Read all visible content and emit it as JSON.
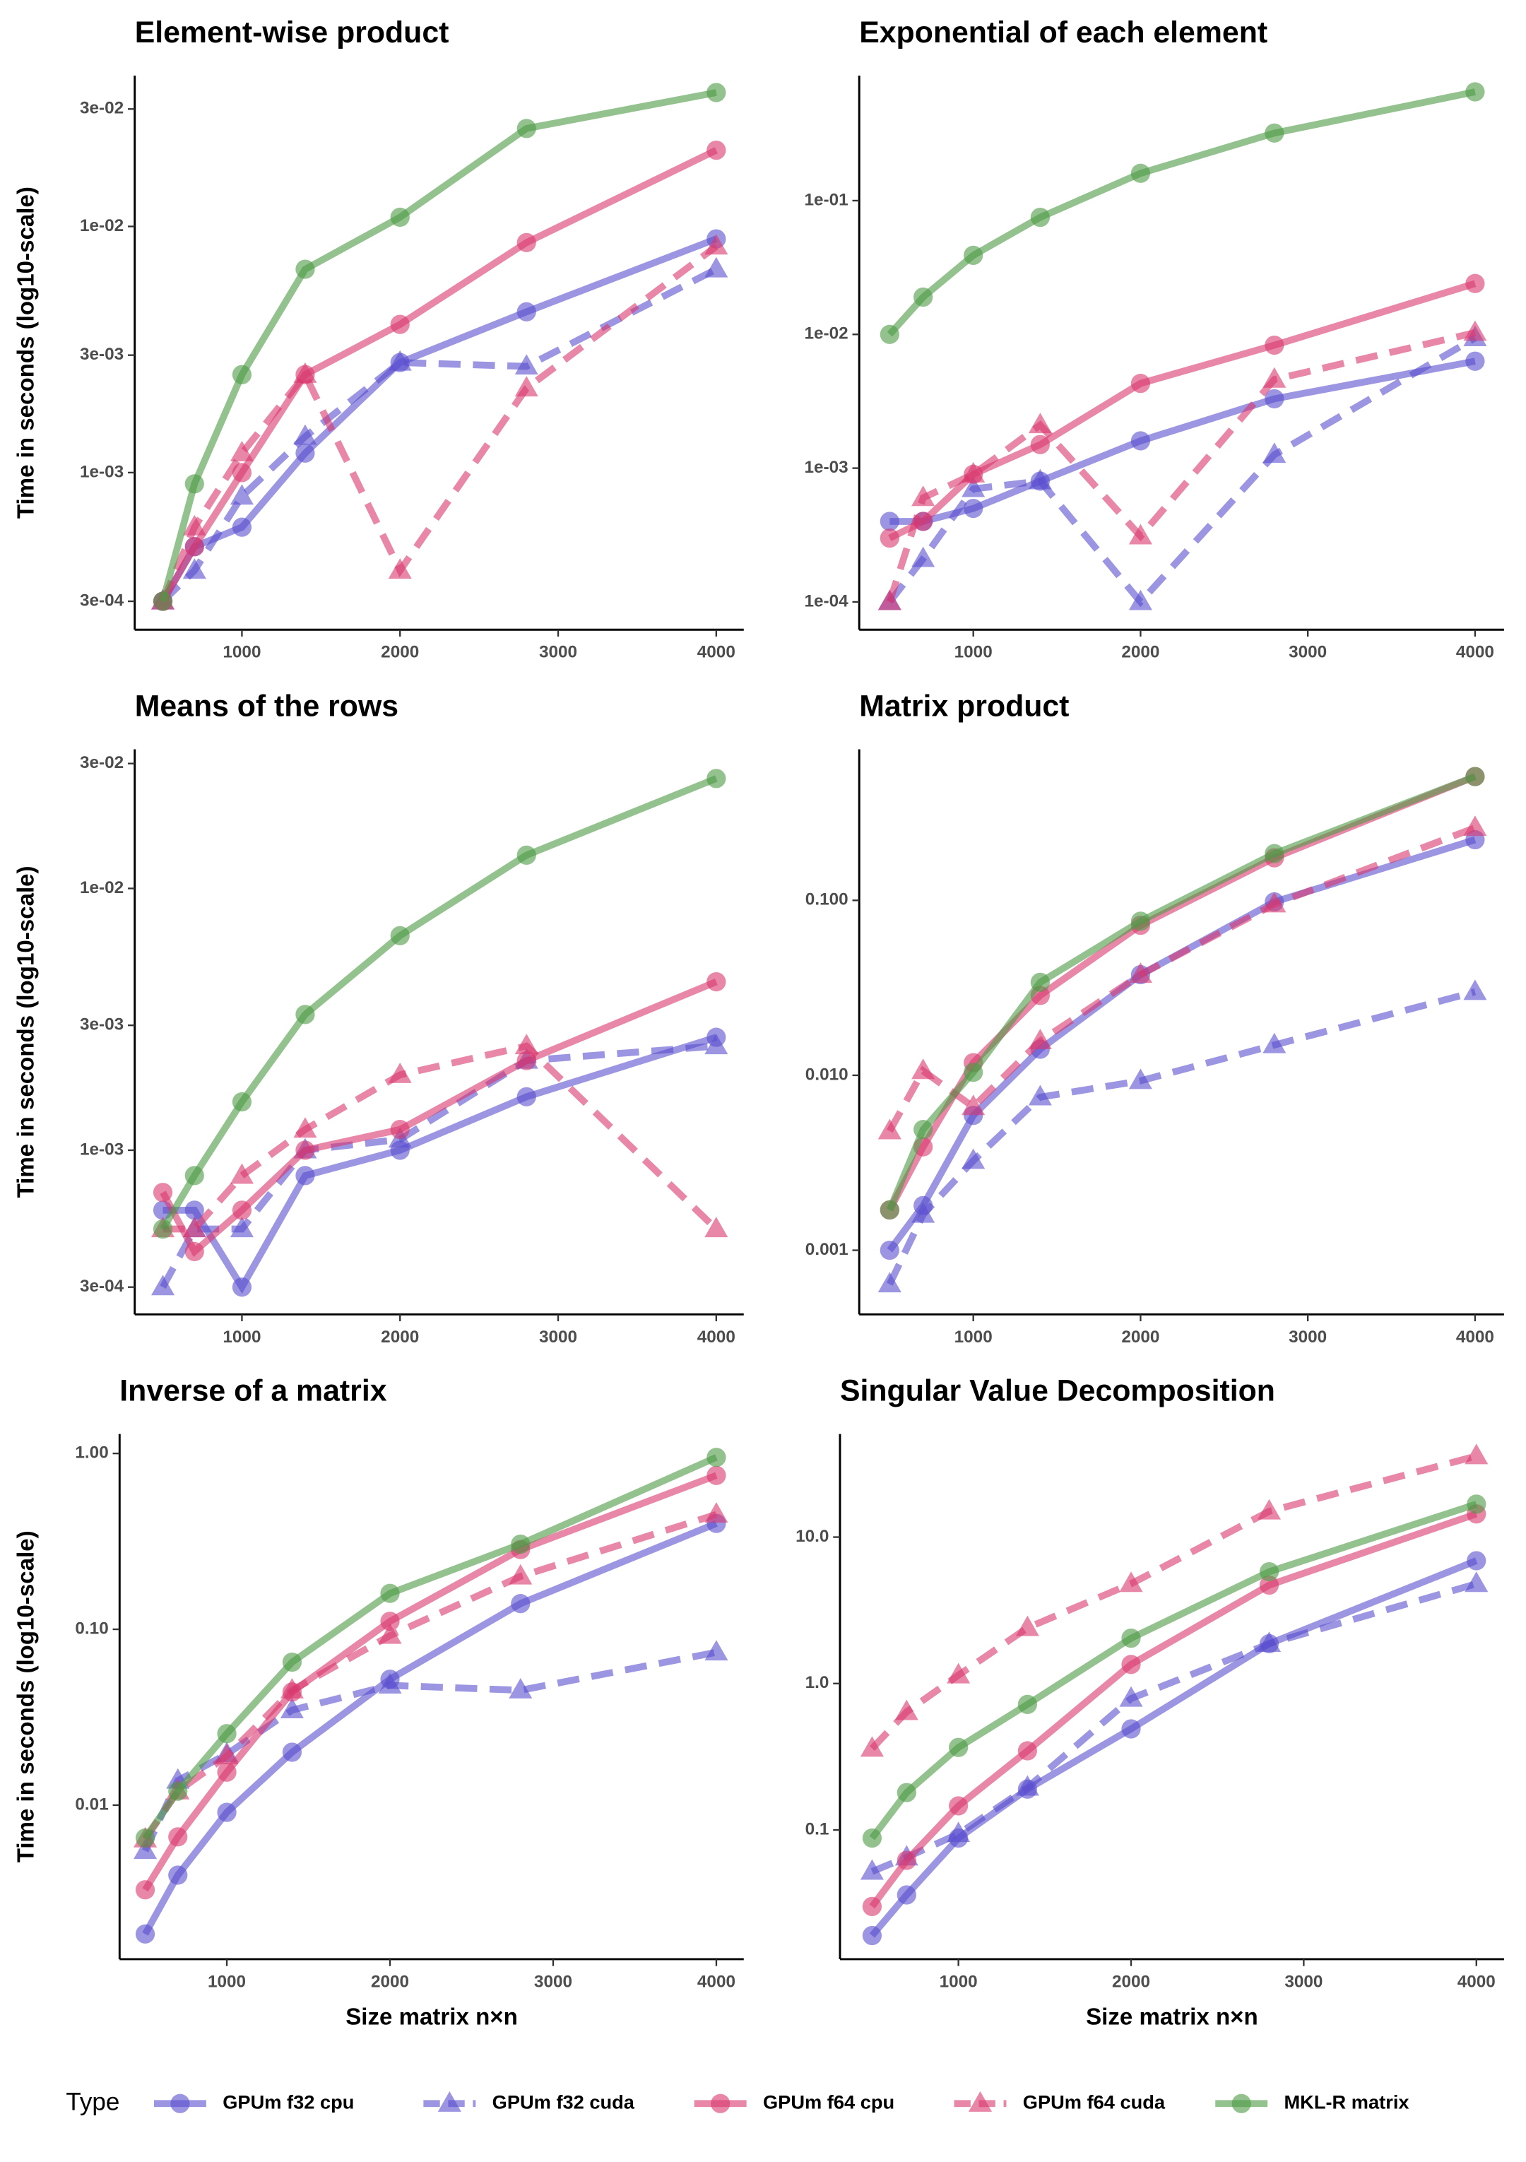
{
  "chart_data": [
    {
      "type": "line",
      "title": "Element-wise product",
      "ylabel": "Time in seconds (log10-scale)",
      "ylog": true,
      "x": [
        500,
        700,
        1000,
        1400,
        2000,
        2800,
        4000
      ],
      "xlim": [
        322,
        4174
      ],
      "xticks": [
        1000,
        2000,
        3000,
        4000
      ],
      "ylim": [
        0.00023,
        0.041
      ],
      "yticks": [
        {
          "value": 0.0003,
          "label": "3e-04"
        },
        {
          "value": 0.001,
          "label": "1e-03"
        },
        {
          "value": 0.003,
          "label": "3e-03"
        },
        {
          "value": 0.01,
          "label": "1e-02"
        },
        {
          "value": 0.03,
          "label": "3e-02"
        }
      ],
      "series": [
        {
          "name": "GPUm f32 cpu",
          "color": "#5a4fcf",
          "linetype": "solid",
          "marker": "circle",
          "values": [
            0.0003,
            0.0005,
            0.0006,
            0.0012,
            0.0028,
            0.0045,
            0.0089
          ]
        },
        {
          "name": "GPUm f32 cuda",
          "color": "#5a4fcf",
          "linetype": "dashed",
          "marker": "triangle",
          "values": [
            0.0003,
            0.0004,
            0.0008,
            0.0014,
            0.0028,
            0.0027,
            0.0067
          ]
        },
        {
          "name": "GPUm f64 cpu",
          "color": "#d9376e",
          "linetype": "solid",
          "marker": "circle",
          "values": [
            0.0003,
            0.0005,
            0.001,
            0.0025,
            0.004,
            0.0086,
            0.0204
          ]
        },
        {
          "name": "GPUm f64 cuda",
          "color": "#d9376e",
          "linetype": "dashed",
          "marker": "triangle",
          "values": [
            0.0003,
            0.0006,
            0.0012,
            0.0025,
            0.0004,
            0.0022,
            0.0083
          ]
        },
        {
          "name": "MKL-R matrix",
          "color": "#4d9a45",
          "linetype": "solid",
          "marker": "circle",
          "values": [
            0.0003,
            0.0009,
            0.0025,
            0.0067,
            0.0109,
            0.025,
            0.035
          ]
        }
      ]
    },
    {
      "type": "line",
      "title": "Exponential of each element",
      "ylog": true,
      "x": [
        500,
        700,
        1000,
        1400,
        2000,
        2800,
        4000
      ],
      "xlim": [
        318,
        4173
      ],
      "xticks": [
        1000,
        2000,
        3000,
        4000
      ],
      "ylim": [
        6.2e-05,
        0.86
      ],
      "yticks": [
        {
          "value": 0.0001,
          "label": "1e-04"
        },
        {
          "value": 0.001,
          "label": "1e-03"
        },
        {
          "value": 0.01,
          "label": "1e-02"
        },
        {
          "value": 0.1,
          "label": "1e-01"
        }
      ],
      "series": [
        {
          "name": "GPUm f32 cpu",
          "color": "#5a4fcf",
          "linetype": "solid",
          "marker": "circle",
          "values": [
            0.0004,
            0.0004,
            0.0005,
            0.0008,
            0.0016,
            0.0033,
            0.0063
          ]
        },
        {
          "name": "GPUm f32 cuda",
          "color": "#5a4fcf",
          "linetype": "dashed",
          "marker": "triangle",
          "values": [
            0.0001,
            0.00021,
            0.0007,
            0.0008,
            0.0001,
            0.00126,
            0.0094
          ]
        },
        {
          "name": "GPUm f64 cpu",
          "color": "#d9376e",
          "linetype": "solid",
          "marker": "circle",
          "values": [
            0.0003,
            0.0004,
            0.0009,
            0.0015,
            0.0043,
            0.0083,
            0.024
          ]
        },
        {
          "name": "GPUm f64 cuda",
          "color": "#d9376e",
          "linetype": "dashed",
          "marker": "triangle",
          "values": [
            0.0001,
            0.0006,
            0.0009,
            0.0021,
            0.00031,
            0.0046,
            0.0103
          ]
        },
        {
          "name": "MKL-R matrix",
          "color": "#4d9a45",
          "linetype": "solid",
          "marker": "circle",
          "values": [
            0.01,
            0.019,
            0.039,
            0.075,
            0.16,
            0.32,
            0.65
          ]
        }
      ]
    },
    {
      "type": "line",
      "title": "Means of the rows",
      "ylabel": "Time in seconds (log10-scale)",
      "ylog": true,
      "x": [
        500,
        700,
        1000,
        1400,
        2000,
        2800,
        4000
      ],
      "xlim": [
        322,
        4174
      ],
      "xticks": [
        1000,
        2000,
        3000,
        4000
      ],
      "ylim": [
        0.000236,
        0.034
      ],
      "yticks": [
        {
          "value": 0.0003,
          "label": "3e-04"
        },
        {
          "value": 0.001,
          "label": "1e-03"
        },
        {
          "value": 0.003,
          "label": "3e-03"
        },
        {
          "value": 0.01,
          "label": "1e-02"
        },
        {
          "value": 0.03,
          "label": "3e-02"
        }
      ],
      "series": [
        {
          "name": "GPUm f32 cpu",
          "color": "#5a4fcf",
          "linetype": "solid",
          "marker": "circle",
          "values": [
            0.00059,
            0.00059,
            0.0003,
            0.0008,
            0.001,
            0.0016,
            0.0027
          ]
        },
        {
          "name": "GPUm f32 cuda",
          "color": "#5a4fcf",
          "linetype": "dashed",
          "marker": "triangle",
          "values": [
            0.0003,
            0.0005,
            0.0005,
            0.001,
            0.0011,
            0.0022,
            0.0025
          ]
        },
        {
          "name": "GPUm f64 cpu",
          "color": "#d9376e",
          "linetype": "solid",
          "marker": "circle",
          "values": [
            0.00069,
            0.00041,
            0.00059,
            0.001,
            0.0012,
            0.0022,
            0.0044
          ]
        },
        {
          "name": "GPUm f64 cuda",
          "color": "#d9376e",
          "linetype": "dashed",
          "marker": "triangle",
          "values": [
            0.0005,
            0.0005,
            0.0008,
            0.0012,
            0.00194,
            0.0025,
            0.0005
          ]
        },
        {
          "name": "MKL-R matrix",
          "color": "#4d9a45",
          "linetype": "solid",
          "marker": "circle",
          "values": [
            0.0005,
            0.0008,
            0.00153,
            0.0033,
            0.0066,
            0.0134,
            0.0263
          ]
        }
      ]
    },
    {
      "type": "line",
      "title": "Matrix product",
      "ylog": true,
      "x": [
        500,
        700,
        1000,
        1400,
        2000,
        2800,
        4000
      ],
      "xlim": [
        318,
        4173
      ],
      "xticks": [
        1000,
        2000,
        3000,
        4000
      ],
      "ylim": [
        0.00043,
        0.73
      ],
      "yticks": [
        0.001,
        {
          "value": 0.01,
          "label": "0.010"
        },
        {
          "value": 0.1,
          "label": "0.100"
        }
      ],
      "series": [
        {
          "name": "GPUm f32 cpu",
          "color": "#5a4fcf",
          "linetype": "solid",
          "marker": "circle",
          "values": [
            0.001,
            0.0018,
            0.0059,
            0.0141,
            0.0376,
            0.098,
            0.222
          ]
        },
        {
          "name": "GPUm f32 cuda",
          "color": "#5a4fcf",
          "linetype": "dashed",
          "marker": "triangle",
          "values": [
            0.00064,
            0.0016,
            0.00325,
            0.0075,
            0.0093,
            0.0149,
            0.03
          ]
        },
        {
          "name": "GPUm f64 cpu",
          "color": "#d9376e",
          "linetype": "solid",
          "marker": "circle",
          "values": [
            0.0017,
            0.0039,
            0.0118,
            0.0286,
            0.072,
            0.175,
            0.51
          ]
        },
        {
          "name": "GPUm f64 cuda",
          "color": "#d9376e",
          "linetype": "dashed",
          "marker": "triangle",
          "values": [
            0.0048,
            0.0106,
            0.0066,
            0.0157,
            0.0376,
            0.095,
            0.26
          ]
        },
        {
          "name": "MKL-R matrix",
          "color": "#4d9a45",
          "linetype": "solid",
          "marker": "circle",
          "values": [
            0.0017,
            0.0049,
            0.0104,
            0.034,
            0.076,
            0.185,
            0.51
          ]
        }
      ]
    },
    {
      "type": "line",
      "title": "Inverse of a matrix",
      "ylabel": "Time in seconds (log10-scale)",
      "xlabel": "Size matrix n×n",
      "ylog": true,
      "x": [
        500,
        700,
        1000,
        1400,
        2000,
        2800,
        4000
      ],
      "xlim": [
        343,
        4168
      ],
      "xticks": [
        1000,
        2000,
        3000,
        4000
      ],
      "ylim": [
        0.00133,
        1.29
      ],
      "yticks": [
        0.01,
        {
          "value": 0.1,
          "label": "0.10"
        },
        {
          "value": 1,
          "label": "1.00"
        }
      ],
      "series": [
        {
          "name": "GPUm f32 cpu",
          "color": "#5a4fcf",
          "linetype": "solid",
          "marker": "circle",
          "values": [
            0.00185,
            0.004,
            0.0091,
            0.02,
            0.052,
            0.14,
            0.4
          ]
        },
        {
          "name": "GPUm f32 cuda",
          "color": "#5a4fcf",
          "linetype": "dashed",
          "marker": "triangle",
          "values": [
            0.0055,
            0.0138,
            0.0195,
            0.0347,
            0.048,
            0.045,
            0.074
          ]
        },
        {
          "name": "GPUm f64 cpu",
          "color": "#d9376e",
          "linetype": "solid",
          "marker": "circle",
          "values": [
            0.0033,
            0.0066,
            0.0154,
            0.044,
            0.111,
            0.284,
            0.75
          ]
        },
        {
          "name": "GPUm f64 cuda",
          "color": "#d9376e",
          "linetype": "dashed",
          "marker": "triangle",
          "values": [
            0.0064,
            0.012,
            0.019,
            0.045,
            0.092,
            0.2,
            0.45
          ]
        },
        {
          "name": "MKL-R matrix",
          "color": "#4d9a45",
          "linetype": "solid",
          "marker": "circle",
          "values": [
            0.0065,
            0.012,
            0.0255,
            0.065,
            0.16,
            0.305,
            0.95
          ]
        }
      ]
    },
    {
      "type": "line",
      "title": "Singular Value Decomposition",
      "xlabel": "Size matrix n×n",
      "ylog": true,
      "x": [
        500,
        700,
        1000,
        1400,
        2000,
        2800,
        4000
      ],
      "xlim": [
        314,
        4160
      ],
      "xticks": [
        1000,
        2000,
        3000,
        4000
      ],
      "ylim": [
        0.0131,
        50.6
      ],
      "yticks": [
        0.1,
        {
          "value": 1,
          "label": "1.0"
        },
        {
          "value": 10,
          "label": "10.0"
        }
      ],
      "series": [
        {
          "name": "GPUm f32 cpu",
          "color": "#5a4fcf",
          "linetype": "solid",
          "marker": "circle",
          "values": [
            0.019,
            0.036,
            0.088,
            0.19,
            0.49,
            1.87,
            6.9
          ]
        },
        {
          "name": "GPUm f32 cuda",
          "color": "#5a4fcf",
          "linetype": "dashed",
          "marker": "triangle",
          "values": [
            0.052,
            0.065,
            0.094,
            0.195,
            0.79,
            1.87,
            4.8
          ]
        },
        {
          "name": "GPUm f64 cpu",
          "color": "#d9376e",
          "linetype": "solid",
          "marker": "circle",
          "values": [
            0.03,
            0.062,
            0.146,
            0.347,
            1.35,
            4.7,
            14.4
          ]
        },
        {
          "name": "GPUm f64 cuda",
          "color": "#d9376e",
          "linetype": "dashed",
          "marker": "triangle",
          "values": [
            0.36,
            0.64,
            1.14,
            2.4,
            4.8,
            15,
            35.8
          ]
        },
        {
          "name": "MKL-R matrix",
          "color": "#4d9a45",
          "linetype": "solid",
          "marker": "circle",
          "values": [
            0.088,
            0.18,
            0.366,
            0.72,
            2.04,
            5.8,
            16.8
          ]
        }
      ]
    }
  ],
  "legend": {
    "title": "Type",
    "position": "bottom"
  }
}
